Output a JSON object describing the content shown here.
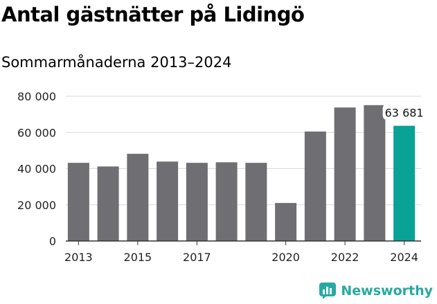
{
  "title": "Antal gästnätter på Lidingö",
  "subtitle": "Sommarmånaderna 2013–2024",
  "brand": "Newsworthy",
  "colors": {
    "bar": "#6f6e73",
    "highlight": "#0aa296",
    "grid": "#d9d9d9",
    "axis": "#333333",
    "brand": "#27a9a3"
  },
  "chart_data": {
    "type": "bar",
    "categories": [
      "2013",
      "2014",
      "2015",
      "2016",
      "2017",
      "2018",
      "2019",
      "2020",
      "2021",
      "2022",
      "2023",
      "2024"
    ],
    "values": [
      43200,
      41200,
      48200,
      43900,
      43200,
      43500,
      43200,
      21000,
      60500,
      73800,
      75100,
      63681
    ],
    "xticks": [
      "2013",
      "2015",
      "2017",
      "2020",
      "2022",
      "2024"
    ],
    "yticks": [
      0,
      20000,
      40000,
      60000,
      80000
    ],
    "ytick_labels": [
      "0",
      "20 000",
      "40 000",
      "60 000",
      "80 000"
    ],
    "ylim": [
      0,
      80000
    ],
    "highlight_category": "2024",
    "annotation": {
      "category": "2024",
      "text": "63 681"
    },
    "grid": true,
    "xlabel": "",
    "ylabel": ""
  }
}
